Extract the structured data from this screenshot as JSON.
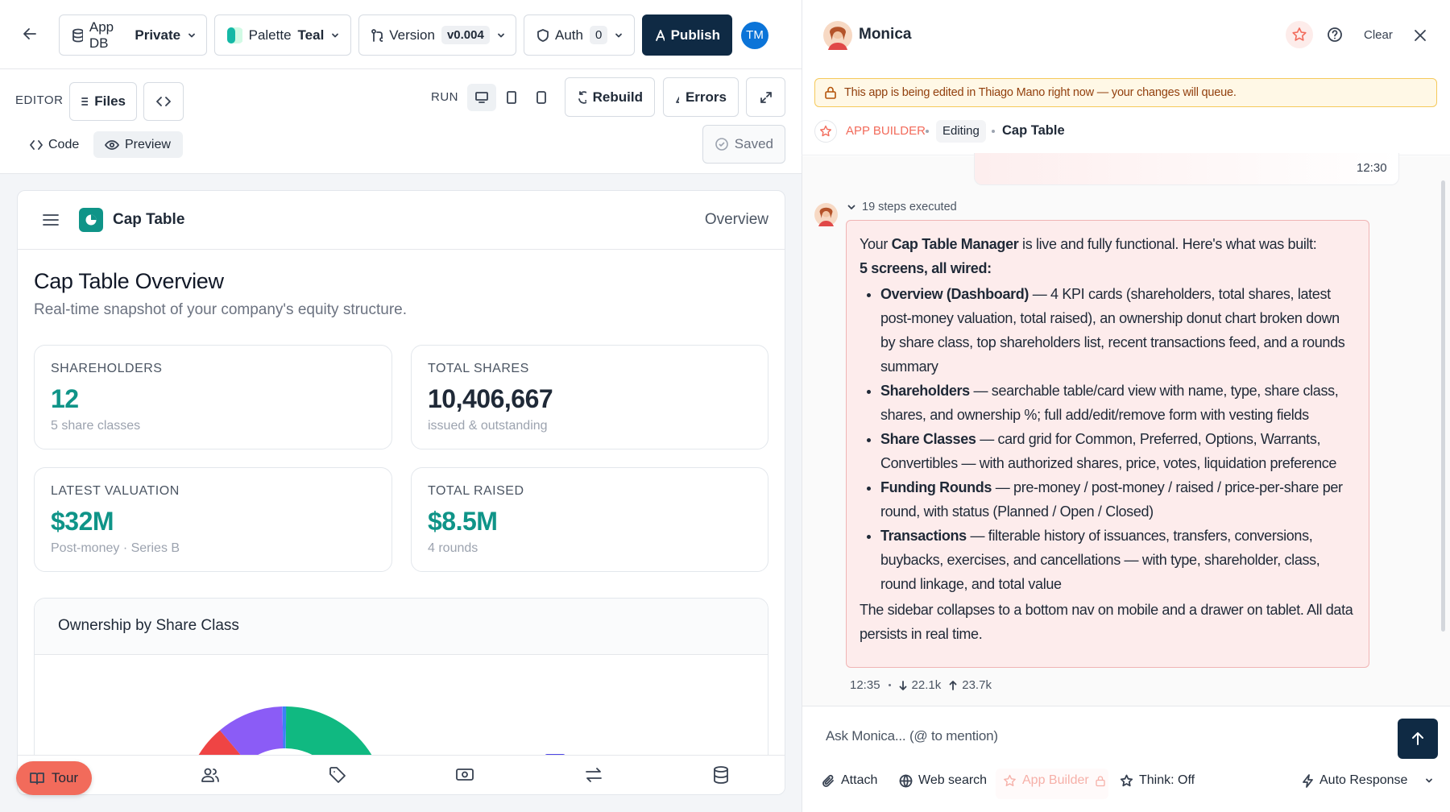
{
  "top_bar": {
    "db_label": "App DB",
    "db_value": "Private",
    "palette_label": "Palette",
    "palette_value": "Teal",
    "version_label": "Version",
    "version_value": "v0.004",
    "auth_label": "Auth",
    "auth_value": "0",
    "publish": "Publish",
    "avatar": "TM"
  },
  "editor": {
    "label": "EDITOR",
    "files": "Files",
    "run": "RUN",
    "rebuild": "Rebuild",
    "errors": "Errors",
    "tabs": [
      "Code",
      "Preview"
    ],
    "saved": "Saved"
  },
  "preview": {
    "app_name": "Cap Table",
    "nav_current": "Overview",
    "heading": "Cap Table Overview",
    "subheading": "Real-time snapshot of your company's equity structure.",
    "kpis": [
      {
        "label": "SHAREHOLDERS",
        "value": "12",
        "note": "5 share classes"
      },
      {
        "label": "TOTAL SHARES",
        "value": "10,406,667",
        "note": "issued & outstanding"
      },
      {
        "label": "LATEST VALUATION",
        "value": "$32M",
        "note": "Post-money · Series B"
      },
      {
        "label": "TOTAL RAISED",
        "value": "$8.5M",
        "note": "4 rounds"
      }
    ],
    "chart_title": "Ownership by Share Class",
    "tour": "Tour"
  },
  "chat": {
    "assistant": "Monica",
    "clear": "Clear",
    "banner": "This app is being edited in Thiago Mano right now — your changes will queue.",
    "breadcrumb": {
      "section": "APP BUILDER",
      "mode": "Editing",
      "page": "Cap Table"
    },
    "previous_time": "12:30",
    "steps": "19 steps executed",
    "message": {
      "intro": {
        "before": "Your ",
        "bold": "Cap Table Manager",
        "after": " is live and fully functional. Here's what was built:"
      },
      "summary": "5 screens, all wired:",
      "bullets": [
        {
          "title": "Overview (Dashboard)",
          "text": " — 4 KPI cards (shareholders, total shares, latest post-money valuation, total raised), an ownership donut chart broken down by share class, top shareholders list, recent transactions feed, and a rounds summary"
        },
        {
          "title": "Shareholders",
          "text": " — searchable table/card view with name, type, share class, shares, and ownership %; full add/edit/remove form with vesting fields"
        },
        {
          "title": "Share Classes",
          "text": " — card grid for Common, Preferred, Options, Warrants, Convertibles — with authorized shares, price, votes, liquidation preference"
        },
        {
          "title": "Funding Rounds",
          "text": " — pre-money / post-money / raised / price-per-share per round, with status (Planned / Open / Closed)"
        },
        {
          "title": "Transactions",
          "text": " — filterable history of issuances, transfers, conversions, buybacks, exercises, and cancellations — with type, shareholder, class, round linkage, and total value"
        }
      ],
      "closing": "The sidebar collapses to a bottom nav on mobile and a drawer on tablet. All data persists in real time."
    },
    "meta": {
      "time": "12:35",
      "tokens_in": "22.1k",
      "tokens_out": "23.7k"
    },
    "input_placeholder": "Ask Monica... (@ to mention)",
    "tools": [
      "Attach",
      "Web search",
      "App Builder",
      "Think: Off"
    ],
    "mode": "Auto Response"
  }
}
